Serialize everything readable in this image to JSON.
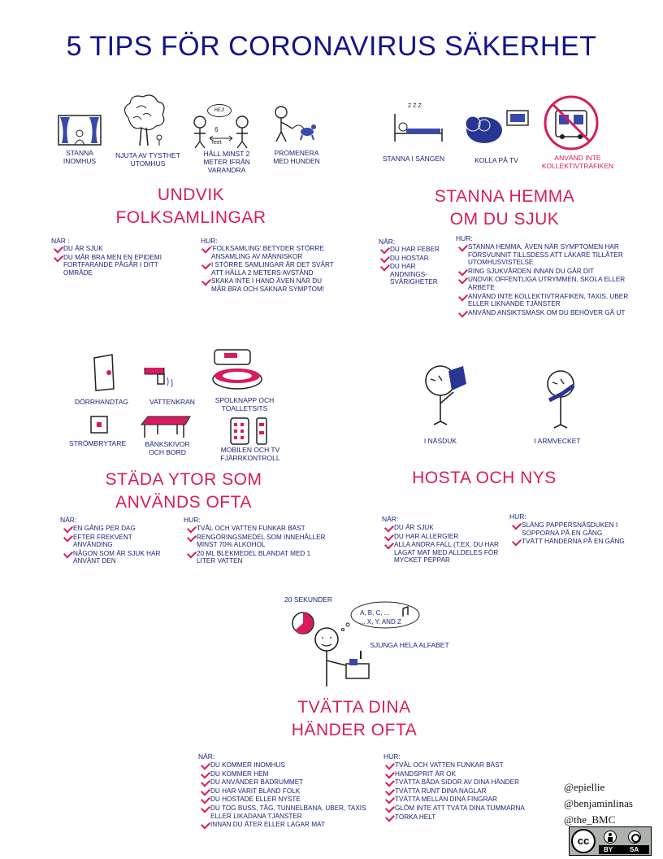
{
  "title": "5 TIPS FÖR CORONAVIRUS SÄKERHET",
  "sec1": {
    "title_lines": [
      "UNDVIK",
      "FOLKSAMLINGAR"
    ],
    "captions": {
      "stay_in": "STANNA INOMHUS",
      "silence": "NJUTA AV TYSTHET UTOMHUS",
      "distance": "HÅLL MINST 2 METER IFRÅN VARANDRA",
      "walk": "PROMENERA MED HUNDEN"
    },
    "bubble_text": "HEJ!",
    "distance_num": "6",
    "distance_unit": "feet",
    "when_label": "NÄR :",
    "when": [
      "DU ÄR SJUK",
      "DU MÅR BRA MEN EN EPIDEMI FORTFARANDE PÅGÅR I DITT OMRÅDE"
    ],
    "how_label": "HUR:",
    "how": [
      "'FOLKSAMLING' BETYDER STÖRRE ANSAMLING AV MÄNNISKOR",
      "I STÖRRE SAMLINGAR ÄR DET SVÅRT ATT HÅLLA 2 METERS AVSTÅND",
      "SKAKA INTE I HAND ÄVEN NÄR DU MÅR BRA OCH SAKNAR SYMPTOM!"
    ]
  },
  "sec2": {
    "title_lines": [
      "STANNA HEMMA",
      "OM DU SJUK"
    ],
    "captions": {
      "bed": "STANNA I SÄNGEN",
      "tv": "KOLLA PÅ TV",
      "transit": "ANVÄND INTE KOLLEKTIVTRAFIKEN"
    },
    "zzz": "Z Z Z",
    "when_label": "NÄR:",
    "when": [
      "DU HAR FEBER",
      "DU HOSTAR",
      "DU HAR ANDNINGS-SVÅRIGHETER"
    ],
    "how_label": "HUR:",
    "how": [
      "STANNA HEMMA, ÄVEN NÄR SYMPTOMEN HAR FÖRSVUNNIT TILLSDESS ATT LÄKARE TILLÅTER UTOMHUSVISTELSE",
      "RING SJUKVÅRDEN INNAN DU GÅR DIT",
      "UNDVIK OFFENTLIGA UTRYMMEN, SKOLA ELLER ARBETE",
      "ANVÄND INTE KOLLEKTIVTRAFIKEN, TAXIS, UBER ELLER LIKNANDE TJÄNSTER",
      "ANVÄND ANSIKTSMASK OM DU BEHÖVER GÅ UT"
    ]
  },
  "sec3": {
    "title_lines": [
      "STÄDA YTOR SOM",
      "ANVÄNDS  OFTA"
    ],
    "captions": {
      "door": "DÖRRHANDTAG",
      "tap": "VATTENKRAN",
      "toilet": "SPOLKNAPP OCH TOALLETSITS",
      "switch": "STRÖMBRYTARE",
      "table": "BÄNKSKIVOR OCH BORD",
      "phone": "MOBILEN OCH TV FJÄRRKONTROLL"
    },
    "when_label": "NÄR:",
    "when": [
      "EN GÅNG PER DAG",
      "EFTER FREKVENT ANVÄNDING",
      "NÅGON SOM ÄR SJUK HAR ANVÄNT DEN"
    ],
    "how_label": "HUR:",
    "how": [
      "TVÅL OCH VATTEN FUNKAR BÄST",
      "RENGÖRINGSMEDEL SOM INNEHÅLLER MINST 70% ALKOHOL",
      "20 ML BLEKMEDEL BLANDAT MED 1 LITER VATTEN"
    ]
  },
  "sec4": {
    "title_lines": [
      "HOSTA OCH NYS"
    ],
    "captions": {
      "tissue": "I NÄSDUK",
      "elbow": "I ARMVECKET"
    },
    "when_label": "NÄR:",
    "when": [
      "DU ÄR SJUK",
      "DU HAR ALLERGIER",
      "ALLA ANDRA FALL (T.EX. DU HAR LAGAT MAT MED ALLDELES FÖR MYCKET PEPPAR"
    ],
    "how_label": "HUR:",
    "how": [
      "SLÄNG PAPPERSNÄSDUKEN I SOPPORNA PÅ EN GÅNG",
      "TVÄTT HÄNDERNA PÅ EN GÅNG"
    ]
  },
  "sec5": {
    "title_lines": [
      "TVÄTTA DINA",
      "HÄNDER OFTA"
    ],
    "timer_label": "20 SEKUNDER",
    "thought_line1": "A, B, C, ...",
    "thought_line2": "... X, Y, AND Z",
    "sing": "SJUNGA HELA ALFABET",
    "when_label": "NÄR:",
    "when": [
      "DU KOMMER  INOMHUS",
      "DU KOMMER  HEM",
      "DU ANVÄNDER BADRUMMET",
      "DU HAR VARIT BLAND FOLK",
      "DU HOSTADE ELLER NYSTE",
      "DU TOG BUSS, TÅG, TUNNELBANA, UBER, TAXIS ELLER LIKADANA TJÄNSTER",
      "INNAN DU ÄTER ELLER LAGAR MAT"
    ],
    "how_label": "HUR:",
    "how": [
      "TVÅL OCH VATTEN FUNKAR BÄST",
      "HANDSPRIT ÄR OK",
      "TVÄTTA BÅDA SIDOR AV DINA HÄNDER",
      "TVÄTTA  RUNT DINA NAGLAR",
      "TVÄTTA  MELLAN  DINA FINGRAR",
      "GLÖM  INTE ATT TVÄTA  DINA TUMMARNA",
      "TORKA HELT"
    ]
  },
  "credits": [
    "@epiellie",
    "@benjaminlinas",
    "@the_BMC"
  ],
  "license": {
    "cc": "cc",
    "by": "BY",
    "sa": "SA"
  },
  "colors": {
    "title": "#12128f",
    "accent": "#d81b60",
    "text": "#1a237e"
  }
}
